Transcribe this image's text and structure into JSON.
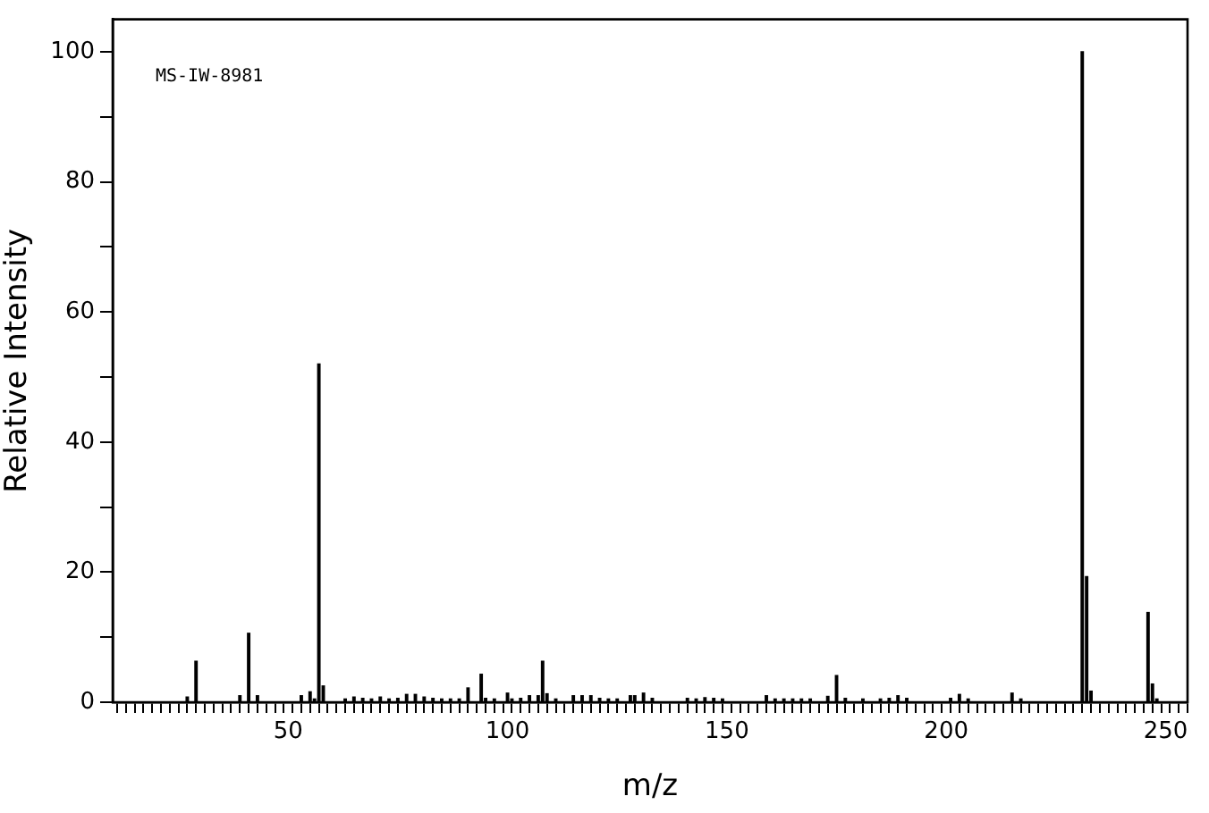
{
  "chart_data": {
    "type": "bar",
    "xlabel": "m/z",
    "ylabel": "Relative Intensity",
    "annotations": [
      "MS-IW-8981"
    ],
    "color": "#000000",
    "grid": false,
    "xlim": [
      10,
      255
    ],
    "ylim": [
      0,
      105
    ],
    "xticks": [
      {
        "value": 12,
        "label": null
      },
      {
        "value": 14,
        "label": null
      },
      {
        "value": 16,
        "label": null
      },
      {
        "value": 18,
        "label": null
      },
      {
        "value": 20,
        "label": null
      },
      {
        "value": 22,
        "label": null
      },
      {
        "value": 24,
        "label": null
      },
      {
        "value": 26,
        "label": null
      },
      {
        "value": 28,
        "label": null
      },
      {
        "value": 30,
        "label": null
      },
      {
        "value": 32,
        "label": null
      },
      {
        "value": 34,
        "label": null
      },
      {
        "value": 36,
        "label": null
      },
      {
        "value": 38,
        "label": null
      },
      {
        "value": 40,
        "label": null
      },
      {
        "value": 42,
        "label": null
      },
      {
        "value": 44,
        "label": null
      },
      {
        "value": 46,
        "label": null
      },
      {
        "value": 48,
        "label": null
      },
      50,
      {
        "value": 52,
        "label": null
      },
      {
        "value": 54,
        "label": null
      },
      {
        "value": 56,
        "label": null
      },
      {
        "value": 58,
        "label": null
      },
      {
        "value": 60,
        "label": null
      },
      {
        "value": 62,
        "label": null
      },
      {
        "value": 64,
        "label": null
      },
      {
        "value": 66,
        "label": null
      },
      {
        "value": 68,
        "label": null
      },
      {
        "value": 70,
        "label": null
      },
      {
        "value": 72,
        "label": null
      },
      {
        "value": 74,
        "label": null
      },
      {
        "value": 76,
        "label": null
      },
      {
        "value": 78,
        "label": null
      },
      {
        "value": 80,
        "label": null
      },
      {
        "value": 82,
        "label": null
      },
      {
        "value": 84,
        "label": null
      },
      {
        "value": 86,
        "label": null
      },
      {
        "value": 88,
        "label": null
      },
      {
        "value": 90,
        "label": null
      },
      {
        "value": 92,
        "label": null
      },
      {
        "value": 94,
        "label": null
      },
      {
        "value": 96,
        "label": null
      },
      {
        "value": 98,
        "label": null
      },
      100,
      {
        "value": 102,
        "label": null
      },
      {
        "value": 104,
        "label": null
      },
      {
        "value": 106,
        "label": null
      },
      {
        "value": 108,
        "label": null
      },
      {
        "value": 110,
        "label": null
      },
      {
        "value": 112,
        "label": null
      },
      {
        "value": 114,
        "label": null
      },
      {
        "value": 116,
        "label": null
      },
      {
        "value": 118,
        "label": null
      },
      {
        "value": 120,
        "label": null
      },
      {
        "value": 122,
        "label": null
      },
      {
        "value": 124,
        "label": null
      },
      {
        "value": 126,
        "label": null
      },
      {
        "value": 128,
        "label": null
      },
      {
        "value": 130,
        "label": null
      },
      {
        "value": 132,
        "label": null
      },
      {
        "value": 134,
        "label": null
      },
      {
        "value": 136,
        "label": null
      },
      {
        "value": 138,
        "label": null
      },
      {
        "value": 140,
        "label": null
      },
      {
        "value": 142,
        "label": null
      },
      {
        "value": 144,
        "label": null
      },
      {
        "value": 146,
        "label": null
      },
      {
        "value": 148,
        "label": null
      },
      150,
      {
        "value": 152,
        "label": null
      },
      {
        "value": 154,
        "label": null
      },
      {
        "value": 156,
        "label": null
      },
      {
        "value": 158,
        "label": null
      },
      {
        "value": 160,
        "label": null
      },
      {
        "value": 162,
        "label": null
      },
      {
        "value": 164,
        "label": null
      },
      {
        "value": 166,
        "label": null
      },
      {
        "value": 168,
        "label": null
      },
      {
        "value": 170,
        "label": null
      },
      {
        "value": 172,
        "label": null
      },
      {
        "value": 174,
        "label": null
      },
      {
        "value": 176,
        "label": null
      },
      {
        "value": 178,
        "label": null
      },
      {
        "value": 180,
        "label": null
      },
      {
        "value": 182,
        "label": null
      },
      {
        "value": 184,
        "label": null
      },
      {
        "value": 186,
        "label": null
      },
      {
        "value": 188,
        "label": null
      },
      {
        "value": 190,
        "label": null
      },
      {
        "value": 192,
        "label": null
      },
      {
        "value": 194,
        "label": null
      },
      {
        "value": 196,
        "label": null
      },
      {
        "value": 198,
        "label": null
      },
      200,
      {
        "value": 202,
        "label": null
      },
      {
        "value": 204,
        "label": null
      },
      {
        "value": 206,
        "label": null
      },
      {
        "value": 208,
        "label": null
      },
      {
        "value": 210,
        "label": null
      },
      {
        "value": 212,
        "label": null
      },
      {
        "value": 214,
        "label": null
      },
      {
        "value": 216,
        "label": null
      },
      {
        "value": 218,
        "label": null
      },
      {
        "value": 220,
        "label": null
      },
      {
        "value": 222,
        "label": null
      },
      {
        "value": 224,
        "label": null
      },
      {
        "value": 226,
        "label": null
      },
      {
        "value": 228,
        "label": null
      },
      {
        "value": 230,
        "label": null
      },
      {
        "value": 232,
        "label": null
      },
      {
        "value": 234,
        "label": null
      },
      {
        "value": 236,
        "label": null
      },
      {
        "value": 238,
        "label": null
      },
      {
        "value": 240,
        "label": null
      },
      {
        "value": 242,
        "label": null
      },
      {
        "value": 244,
        "label": null
      },
      {
        "value": 246,
        "label": null
      },
      {
        "value": 248,
        "label": null
      },
      250,
      {
        "value": 252,
        "label": null
      },
      {
        "value": 254,
        "label": null
      }
    ],
    "yticks": [
      0,
      {
        "value": 10,
        "label": null
      },
      20,
      {
        "value": 30,
        "label": null
      },
      40,
      {
        "value": 50,
        "label": null
      },
      60,
      {
        "value": 70,
        "label": null
      },
      80,
      {
        "value": 90,
        "label": null
      },
      100
    ],
    "x": [
      27,
      29,
      39,
      41,
      43,
      53,
      55,
      56,
      57,
      58,
      63,
      65,
      67,
      69,
      71,
      73,
      75,
      77,
      79,
      81,
      83,
      85,
      87,
      89,
      91,
      94,
      95,
      97,
      100,
      101,
      103,
      105,
      107,
      108,
      109,
      111,
      115,
      117,
      119,
      121,
      123,
      125,
      128,
      129,
      131,
      133,
      141,
      143,
      145,
      147,
      149,
      159,
      161,
      163,
      165,
      167,
      169,
      173,
      175,
      177,
      181,
      185,
      187,
      189,
      191,
      201,
      203,
      205,
      215,
      217,
      231,
      232,
      233,
      246,
      247,
      248
    ],
    "values": [
      0.8,
      6.3,
      1,
      10.6,
      1,
      1,
      1.6,
      0.5,
      52,
      2.5,
      0.5,
      0.8,
      0.6,
      0.5,
      0.8,
      0.5,
      0.6,
      1.2,
      1.2,
      0.8,
      0.6,
      0.5,
      0.5,
      0.5,
      2.2,
      4.3,
      0.6,
      0.5,
      1.4,
      0.5,
      0.6,
      1,
      1,
      6.3,
      1.3,
      0.5,
      1,
      1,
      1,
      0.6,
      0.5,
      0.5,
      1,
      1,
      1.4,
      0.6,
      0.6,
      0.5,
      0.7,
      0.6,
      0.5,
      1,
      0.5,
      0.5,
      0.5,
      0.5,
      0.5,
      0.9,
      4.1,
      0.6,
      0.5,
      0.5,
      0.6,
      1,
      0.6,
      0.6,
      1.2,
      0.5,
      1.4,
      0.5,
      100,
      19.3,
      1.7,
      13.8,
      2.8,
      0.5
    ]
  }
}
